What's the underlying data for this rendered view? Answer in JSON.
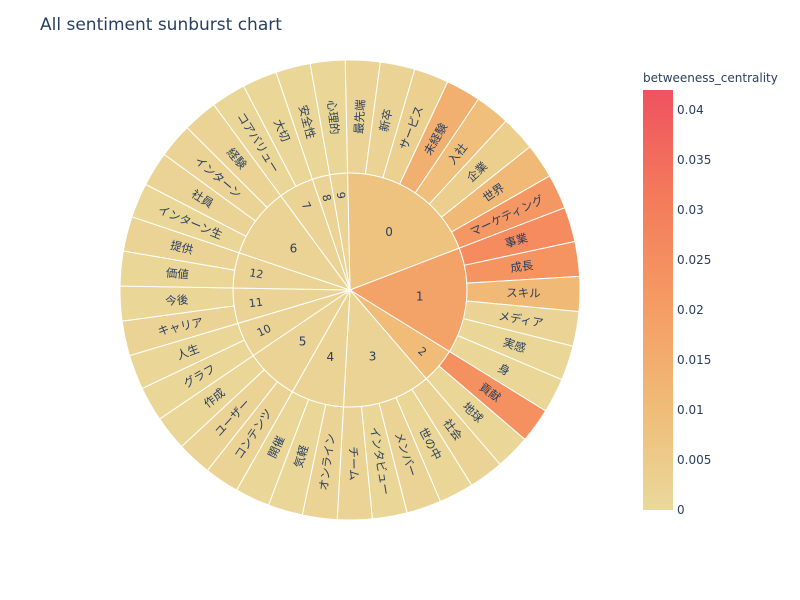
{
  "chart_data": {
    "type": "sunburst",
    "title": "All sentiment sunburst chart",
    "colorbar": {
      "title": "betweeness_centrality",
      "range": [
        0,
        0.042
      ],
      "ticks": [
        "0",
        "0.005",
        "0.01",
        "0.015",
        "0.02",
        "0.025",
        "0.03",
        "0.035",
        "0.04"
      ],
      "tick_values": [
        0,
        0.005,
        0.01,
        0.015,
        0.02,
        0.025,
        0.03,
        0.035,
        0.04
      ],
      "colorscale": [
        "#e9d99b",
        "#f0bb76",
        "#f59a63",
        "#f47a5b",
        "#ef5260"
      ]
    },
    "groups": [
      {
        "label": "0",
        "value": 0.008,
        "children": [
          {
            "label": "最先端",
            "value": 0.002
          },
          {
            "label": "新卒",
            "value": 0.002
          },
          {
            "label": "サービス",
            "value": 0.003
          },
          {
            "label": "未経験",
            "value": 0.014
          },
          {
            "label": "入社",
            "value": 0.009
          },
          {
            "label": "企業",
            "value": 0.004
          },
          {
            "label": "世界",
            "value": 0.011
          },
          {
            "label": "マーケティング",
            "value": 0.022
          }
        ]
      },
      {
        "label": "1",
        "value": 0.018,
        "children": [
          {
            "label": "事業",
            "value": 0.026
          },
          {
            "label": "成長",
            "value": 0.023
          },
          {
            "label": "スキル",
            "value": 0.011
          },
          {
            "label": "メディア",
            "value": 0.002
          },
          {
            "label": "実感",
            "value": 0.001
          },
          {
            "label": "身",
            "value": 0.001
          }
        ]
      },
      {
        "label": "2",
        "value": 0.01,
        "children": [
          {
            "label": "貢献",
            "value": 0.024
          },
          {
            "label": "地球",
            "value": 0.001
          }
        ]
      },
      {
        "label": "3",
        "value": 0.002,
        "children": [
          {
            "label": "社会",
            "value": 0.002
          },
          {
            "label": "世の中",
            "value": 0.001
          },
          {
            "label": "メンバー",
            "value": 0.002
          },
          {
            "label": "インタビュー",
            "value": 0.001
          },
          {
            "label": "チーム",
            "value": 0.002
          }
        ]
      },
      {
        "label": "4",
        "value": 0.002,
        "children": [
          {
            "label": "オンライン",
            "value": 0.002
          },
          {
            "label": "気軽",
            "value": 0.001
          },
          {
            "label": "開催",
            "value": 0.001
          }
        ]
      },
      {
        "label": "5",
        "value": 0.002,
        "children": [
          {
            "label": "コンテンツ",
            "value": 0.002
          },
          {
            "label": "ユーザー",
            "value": 0.002
          },
          {
            "label": "作成",
            "value": 0.001
          }
        ]
      },
      {
        "label": "10",
        "value": 0.002,
        "children": [
          {
            "label": "グラフ",
            "value": 0.001
          },
          {
            "label": "人生",
            "value": 0.001
          }
        ]
      },
      {
        "label": "11",
        "value": 0.002,
        "children": [
          {
            "label": "キャリア",
            "value": 0.002
          },
          {
            "label": "今後",
            "value": 0.001
          }
        ]
      },
      {
        "label": "12",
        "value": 0.002,
        "children": [
          {
            "label": "価値",
            "value": 0.001
          },
          {
            "label": "提供",
            "value": 0.002
          }
        ]
      },
      {
        "label": "6",
        "value": 0.002,
        "children": [
          {
            "label": "インターン生",
            "value": 0.001
          },
          {
            "label": "社員",
            "value": 0.002
          },
          {
            "label": "インターン",
            "value": 0.002
          },
          {
            "label": "経験",
            "value": 0.002
          }
        ]
      },
      {
        "label": "7",
        "value": 0.002,
        "children": [
          {
            "label": "コアバリュー",
            "value": 0.001
          },
          {
            "label": "大切",
            "value": 0.001
          }
        ]
      },
      {
        "label": "8",
        "value": 0.002,
        "children": [
          {
            "label": "安全性",
            "value": 0.001
          }
        ]
      },
      {
        "label": "9",
        "value": 0.002,
        "children": [
          {
            "label": "心理的",
            "value": 0.001
          }
        ]
      }
    ]
  }
}
